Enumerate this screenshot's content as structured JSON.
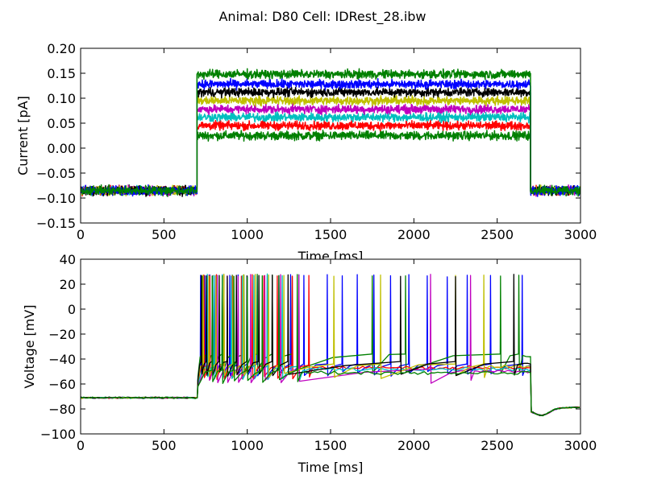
{
  "figure": {
    "suptitle": "Animal: D80 Cell: IDRest_28.ibw"
  },
  "chart_data": [
    {
      "type": "line",
      "panel": "top",
      "xlabel": "Time [ms]",
      "ylabel": "Current [pA]",
      "xlim": [
        0,
        3000
      ],
      "ylim": [
        -0.15,
        0.2
      ],
      "xticks": [
        0,
        500,
        1000,
        1500,
        2000,
        2500,
        3000
      ],
      "xtick_labels": [
        "0",
        "500",
        "1000",
        "1500",
        "2000",
        "2500",
        "3000"
      ],
      "yticks": [
        -0.15,
        -0.1,
        -0.05,
        0.0,
        0.05,
        0.1,
        0.15,
        0.2
      ],
      "ytick_labels": [
        "−0.15",
        "−0.10",
        "−0.05",
        "0.00",
        "0.05",
        "0.10",
        "0.15",
        "0.20"
      ],
      "stimulus": {
        "onset_ms": 700,
        "offset_ms": 2700,
        "baseline_pA": -0.085,
        "noise_pA": 0.006
      },
      "series": [
        {
          "color": "#008000",
          "step_pA": 0.025
        },
        {
          "color": "#ff0000",
          "step_pA": 0.045
        },
        {
          "color": "#00bfbf",
          "step_pA": 0.062
        },
        {
          "color": "#bf00bf",
          "step_pA": 0.078
        },
        {
          "color": "#bfbf00",
          "step_pA": 0.095
        },
        {
          "color": "#000000",
          "step_pA": 0.112
        },
        {
          "color": "#0000ff",
          "step_pA": 0.128
        },
        {
          "color": "#008000",
          "step_pA": 0.148
        }
      ]
    },
    {
      "type": "line",
      "panel": "bottom",
      "xlabel": "Time [ms]",
      "ylabel": "Voltage [mV]",
      "xlim": [
        0,
        3000
      ],
      "ylim": [
        -100,
        40
      ],
      "xticks": [
        0,
        500,
        1000,
        1500,
        2000,
        2500,
        3000
      ],
      "xtick_labels": [
        "0",
        "500",
        "1000",
        "1500",
        "2000",
        "2500",
        "3000"
      ],
      "yticks": [
        -100,
        -80,
        -60,
        -40,
        -20,
        0,
        20,
        40
      ],
      "ytick_labels": [
        "−100",
        "−80",
        "−60",
        "−40",
        "−20",
        "0",
        "20",
        "40"
      ],
      "rest_mV": -71,
      "spike_peak_mV": 27,
      "stim_onset_ms": 700,
      "stim_offset_ms": 2700,
      "series": [
        {
          "color": "#0000ff",
          "trough_mV": -52,
          "plateau_mV": -46,
          "spikes_ms": [
            720,
            745,
            775,
            810,
            850,
            895,
            945,
            1000,
            1060,
            1120,
            1190,
            1260,
            1340,
            1480,
            1570,
            1660,
            1760,
            1860,
            1970,
            2080,
            2200,
            2320,
            2460,
            2650
          ]
        },
        {
          "color": "#008000",
          "trough_mV": -50,
          "plateau_mV": -38,
          "spikes_ms": [
            730,
            760,
            800,
            850,
            910,
            980,
            1060,
            1150,
            1270,
            1750,
            1950,
            2520,
            2630
          ]
        },
        {
          "color": "#ff0000",
          "trough_mV": -55,
          "plateau_mV": -47,
          "spikes_ms": [
            740,
            775,
            815,
            860,
            910,
            965,
            1030,
            1100,
            1180,
            1270,
            1370
          ]
        },
        {
          "color": "#00bfbf",
          "trough_mV": -56,
          "plateau_mV": -48,
          "spikes_ms": [
            760,
            800,
            850,
            905,
            970,
            1040,
            1120,
            1210,
            1310
          ]
        },
        {
          "color": "#bf00bf",
          "trough_mV": -58,
          "plateau_mV": -50,
          "spikes_ms": [
            770,
            820,
            880,
            945,
            1020,
            1105,
            1200,
            1310,
            2100,
            2340
          ]
        },
        {
          "color": "#bfbf00",
          "trough_mV": -54,
          "plateau_mV": -46,
          "spikes_ms": [
            735,
            770,
            812,
            860,
            915,
            978,
            1048,
            1128,
            1220,
            1520,
            1800,
            2250,
            2420
          ]
        },
        {
          "color": "#000000",
          "trough_mV": -53,
          "plateau_mV": -44,
          "spikes_ms": [
            725,
            755,
            790,
            832,
            880,
            935,
            998,
            1070,
            1150,
            1245,
            1920,
            2250,
            2600
          ]
        },
        {
          "color": "#008000",
          "trough_mV": -58,
          "plateau_mV": -51,
          "spikes_ms": [
            790,
            850,
            920,
            1000,
            1090,
            1190,
            1300
          ]
        }
      ]
    }
  ]
}
